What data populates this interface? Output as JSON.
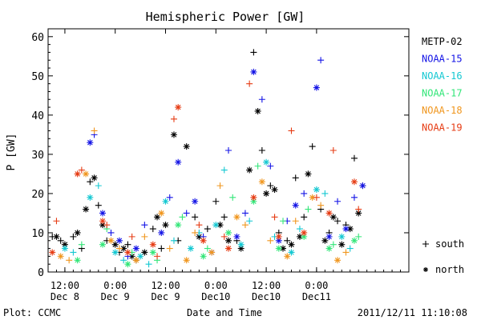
{
  "chart_data": {
    "type": "scatter",
    "title": "Hemispheric Power [GW]",
    "ylabel": "P [GW]",
    "xlabel": "Date and Time",
    "ylim": [
      0,
      62
    ],
    "yticks": [
      0,
      10,
      20,
      30,
      40,
      50,
      60
    ],
    "xlim": [
      "2011-12-08 08:00",
      "2011-12-11 22:00"
    ],
    "xticks": [
      {
        "time": "2011-12-08 12:00",
        "line1": "12:00",
        "line2": "Dec 8"
      },
      {
        "time": "2011-12-09 00:00",
        "line1": "0:00",
        "line2": "Dec 9"
      },
      {
        "time": "2011-12-09 12:00",
        "line1": "12:00",
        "line2": "Dec 9"
      },
      {
        "time": "2011-12-10 00:00",
        "line1": "0:00",
        "line2": "Dec10"
      },
      {
        "time": "2011-12-10 12:00",
        "line1": "12:00",
        "line2": "Dec10"
      },
      {
        "time": "2011-12-11 00:00",
        "line1": "0:00",
        "line2": "Dec11"
      }
    ],
    "grid": false,
    "legend_position": "right",
    "footer_left": "Plot: CCMC",
    "footer_right": "2011/12/11 11:10:08",
    "markers": [
      {
        "symbol": "+",
        "label": "south"
      },
      {
        "symbol": "*",
        "label": "north"
      }
    ],
    "series": [
      {
        "name": "METP-02",
        "color": "#000000",
        "south": [
          [
            "2011-12-08 09:00",
            9
          ],
          [
            "2011-12-08 11:00",
            8
          ],
          [
            "2011-12-08 14:00",
            9
          ],
          [
            "2011-12-08 16:00",
            6
          ],
          [
            "2011-12-08 18:00",
            23
          ],
          [
            "2011-12-08 20:00",
            17
          ],
          [
            "2011-12-08 22:00",
            8
          ],
          [
            "2011-12-09 01:00",
            5
          ],
          [
            "2011-12-09 03:00",
            7
          ],
          [
            "2011-12-09 05:00",
            3
          ],
          [
            "2011-12-09 09:00",
            11
          ],
          [
            "2011-12-09 11:00",
            6
          ],
          [
            "2011-12-09 15:00",
            8
          ],
          [
            "2011-12-09 19:00",
            14
          ],
          [
            "2011-12-09 22:00",
            11
          ],
          [
            "2011-12-10 00:00",
            18
          ],
          [
            "2011-12-10 02:00",
            14
          ],
          [
            "2011-12-10 05:00",
            8
          ],
          [
            "2011-12-10 09:00",
            56
          ],
          [
            "2011-12-10 11:00",
            31
          ],
          [
            "2011-12-10 13:00",
            22
          ],
          [
            "2011-12-10 15:00",
            10
          ],
          [
            "2011-12-10 17:00",
            8
          ],
          [
            "2011-12-10 19:00",
            24
          ],
          [
            "2011-12-10 21:00",
            14
          ],
          [
            "2011-12-10 23:00",
            32
          ],
          [
            "2011-12-11 01:00",
            16
          ],
          [
            "2011-12-11 03:00",
            10
          ],
          [
            "2011-12-11 05:00",
            13
          ],
          [
            "2011-12-11 07:00",
            12
          ],
          [
            "2011-12-11 09:00",
            29
          ],
          [
            "2011-12-11 11:00",
            22
          ]
        ],
        "north": [
          [
            "2011-12-08 10:00",
            9
          ],
          [
            "2011-12-08 12:00",
            7
          ],
          [
            "2011-12-08 15:00",
            10
          ],
          [
            "2011-12-08 17:00",
            16
          ],
          [
            "2011-12-08 19:00",
            24
          ],
          [
            "2011-12-08 21:00",
            12
          ],
          [
            "2011-12-09 00:00",
            7
          ],
          [
            "2011-12-09 02:00",
            6
          ],
          [
            "2011-12-09 04:00",
            4
          ],
          [
            "2011-12-09 07:00",
            5
          ],
          [
            "2011-12-09 10:00",
            14
          ],
          [
            "2011-12-09 12:00",
            12
          ],
          [
            "2011-12-09 14:00",
            35
          ],
          [
            "2011-12-09 17:00",
            32
          ],
          [
            "2011-12-09 20:00",
            9
          ],
          [
            "2011-12-10 01:00",
            12
          ],
          [
            "2011-12-10 03:00",
            8
          ],
          [
            "2011-12-10 06:00",
            6
          ],
          [
            "2011-12-10 08:00",
            26
          ],
          [
            "2011-12-10 10:00",
            41
          ],
          [
            "2011-12-10 12:00",
            20
          ],
          [
            "2011-12-10 14:00",
            21
          ],
          [
            "2011-12-10 16:00",
            6
          ],
          [
            "2011-12-10 18:00",
            7
          ],
          [
            "2011-12-10 20:00",
            9
          ],
          [
            "2011-12-10 22:00",
            25
          ],
          [
            "2011-12-11 02:00",
            8
          ],
          [
            "2011-12-11 04:00",
            14
          ],
          [
            "2011-12-11 06:00",
            7
          ],
          [
            "2011-12-11 08:00",
            11
          ],
          [
            "2011-12-11 10:00",
            15
          ]
        ]
      },
      {
        "name": "NOAA-15",
        "color": "#1414e6",
        "south": [
          [
            "2011-12-08 19:00",
            35
          ],
          [
            "2011-12-08 23:00",
            10
          ],
          [
            "2011-12-09 03:00",
            4
          ],
          [
            "2011-12-09 07:00",
            12
          ],
          [
            "2011-12-09 13:00",
            19
          ],
          [
            "2011-12-09 17:00",
            15
          ],
          [
            "2011-12-09 21:00",
            9
          ],
          [
            "2011-12-10 03:00",
            31
          ],
          [
            "2011-12-10 07:00",
            15
          ],
          [
            "2011-12-10 11:00",
            44
          ],
          [
            "2011-12-10 13:00",
            27
          ],
          [
            "2011-12-10 17:00",
            13
          ],
          [
            "2011-12-10 21:00",
            20
          ],
          [
            "2011-12-11 01:00",
            54
          ],
          [
            "2011-12-11 05:00",
            18
          ],
          [
            "2011-12-11 09:00",
            19
          ]
        ],
        "north": [
          [
            "2011-12-08 18:00",
            33
          ],
          [
            "2011-12-08 21:00",
            15
          ],
          [
            "2011-12-09 01:00",
            8
          ],
          [
            "2011-12-09 05:00",
            6
          ],
          [
            "2011-12-09 11:00",
            10
          ],
          [
            "2011-12-09 15:00",
            28
          ],
          [
            "2011-12-09 19:00",
            18
          ],
          [
            "2011-12-09 23:00",
            5
          ],
          [
            "2011-12-10 05:00",
            9
          ],
          [
            "2011-12-10 09:00",
            51
          ],
          [
            "2011-12-10 15:00",
            8
          ],
          [
            "2011-12-10 19:00",
            17
          ],
          [
            "2011-12-11 00:00",
            47
          ],
          [
            "2011-12-11 03:00",
            9
          ],
          [
            "2011-12-11 07:00",
            11
          ],
          [
            "2011-12-11 11:00",
            22
          ]
        ]
      },
      {
        "name": "NOAA-16",
        "color": "#14c8d2",
        "south": [
          [
            "2011-12-08 14:00",
            5
          ],
          [
            "2011-12-08 20:00",
            22
          ],
          [
            "2011-12-09 02:00",
            3
          ],
          [
            "2011-12-09 08:00",
            2
          ],
          [
            "2011-12-09 14:00",
            8
          ],
          [
            "2011-12-09 20:00",
            10
          ],
          [
            "2011-12-10 02:00",
            26
          ],
          [
            "2011-12-10 08:00",
            13
          ],
          [
            "2011-12-10 14:00",
            9
          ],
          [
            "2011-12-10 20:00",
            11
          ],
          [
            "2011-12-11 02:00",
            20
          ],
          [
            "2011-12-11 08:00",
            6
          ]
        ],
        "north": [
          [
            "2011-12-08 12:00",
            6
          ],
          [
            "2011-12-08 18:00",
            19
          ],
          [
            "2011-12-09 00:00",
            5
          ],
          [
            "2011-12-09 06:00",
            4
          ],
          [
            "2011-12-09 12:00",
            18
          ],
          [
            "2011-12-09 18:00",
            6
          ],
          [
            "2011-12-10 00:00",
            12
          ],
          [
            "2011-12-10 06:00",
            7
          ],
          [
            "2011-12-10 12:00",
            28
          ],
          [
            "2011-12-10 18:00",
            5
          ],
          [
            "2011-12-11 00:00",
            21
          ],
          [
            "2011-12-11 06:00",
            9
          ]
        ]
      },
      {
        "name": "NOAA-17",
        "color": "#32e678",
        "south": [
          [
            "2011-12-08 16:00",
            7
          ],
          [
            "2011-12-08 22:00",
            11
          ],
          [
            "2011-12-09 04:00",
            5
          ],
          [
            "2011-12-09 10:00",
            3
          ],
          [
            "2011-12-09 16:00",
            14
          ],
          [
            "2011-12-09 22:00",
            6
          ],
          [
            "2011-12-10 04:00",
            19
          ],
          [
            "2011-12-10 10:00",
            27
          ],
          [
            "2011-12-10 16:00",
            13
          ],
          [
            "2011-12-10 22:00",
            16
          ],
          [
            "2011-12-11 04:00",
            7
          ],
          [
            "2011-12-11 10:00",
            9
          ]
        ],
        "north": [
          [
            "2011-12-08 15:00",
            3
          ],
          [
            "2011-12-08 21:00",
            7
          ],
          [
            "2011-12-09 03:00",
            2
          ],
          [
            "2011-12-09 09:00",
            5
          ],
          [
            "2011-12-09 15:00",
            12
          ],
          [
            "2011-12-09 21:00",
            4
          ],
          [
            "2011-12-10 03:00",
            10
          ],
          [
            "2011-12-10 09:00",
            18
          ],
          [
            "2011-12-10 15:00",
            6
          ],
          [
            "2011-12-10 21:00",
            9
          ],
          [
            "2011-12-11 03:00",
            6
          ],
          [
            "2011-12-11 09:00",
            8
          ]
        ]
      },
      {
        "name": "NOAA-18",
        "color": "#f0961e",
        "south": [
          [
            "2011-12-08 13:00",
            3
          ],
          [
            "2011-12-08 19:00",
            36
          ],
          [
            "2011-12-09 01:00",
            6
          ],
          [
            "2011-12-09 07:00",
            9
          ],
          [
            "2011-12-09 13:00",
            6
          ],
          [
            "2011-12-09 19:00",
            10
          ],
          [
            "2011-12-10 01:00",
            22
          ],
          [
            "2011-12-10 07:00",
            12
          ],
          [
            "2011-12-10 13:00",
            8
          ],
          [
            "2011-12-10 19:00",
            13
          ],
          [
            "2011-12-11 01:00",
            17
          ],
          [
            "2011-12-11 07:00",
            5
          ]
        ],
        "north": [
          [
            "2011-12-08 11:00",
            4
          ],
          [
            "2011-12-08 17:00",
            25
          ],
          [
            "2011-12-08 23:00",
            8
          ],
          [
            "2011-12-09 05:00",
            3
          ],
          [
            "2011-12-09 11:00",
            15
          ],
          [
            "2011-12-09 17:00",
            3
          ],
          [
            "2011-12-09 23:00",
            5
          ],
          [
            "2011-12-10 05:00",
            14
          ],
          [
            "2011-12-10 11:00",
            23
          ],
          [
            "2011-12-10 17:00",
            4
          ],
          [
            "2011-12-10 23:00",
            19
          ],
          [
            "2011-12-11 05:00",
            3
          ]
        ]
      },
      {
        "name": "NOAA-19",
        "color": "#e63c14",
        "south": [
          [
            "2011-12-08 10:00",
            13
          ],
          [
            "2011-12-08 16:00",
            26
          ],
          [
            "2011-12-08 22:00",
            12
          ],
          [
            "2011-12-09 04:00",
            9
          ],
          [
            "2011-12-09 10:00",
            4
          ],
          [
            "2011-12-09 14:00",
            39
          ],
          [
            "2011-12-09 20:00",
            12
          ],
          [
            "2011-12-10 02:00",
            9
          ],
          [
            "2011-12-10 08:00",
            48
          ],
          [
            "2011-12-10 14:00",
            14
          ],
          [
            "2011-12-10 18:00",
            36
          ],
          [
            "2011-12-11 00:00",
            19
          ],
          [
            "2011-12-11 04:00",
            31
          ],
          [
            "2011-12-11 10:00",
            16
          ]
        ],
        "north": [
          [
            "2011-12-08 09:00",
            5
          ],
          [
            "2011-12-08 15:00",
            25
          ],
          [
            "2011-12-08 21:00",
            13
          ],
          [
            "2011-12-09 03:00",
            5
          ],
          [
            "2011-12-09 09:00",
            7
          ],
          [
            "2011-12-09 15:00",
            42
          ],
          [
            "2011-12-09 21:00",
            8
          ],
          [
            "2011-12-10 03:00",
            6
          ],
          [
            "2011-12-10 09:00",
            19
          ],
          [
            "2011-12-10 15:00",
            9
          ],
          [
            "2011-12-10 21:00",
            10
          ],
          [
            "2011-12-11 03:00",
            15
          ],
          [
            "2011-12-11 09:00",
            23
          ]
        ]
      }
    ]
  }
}
